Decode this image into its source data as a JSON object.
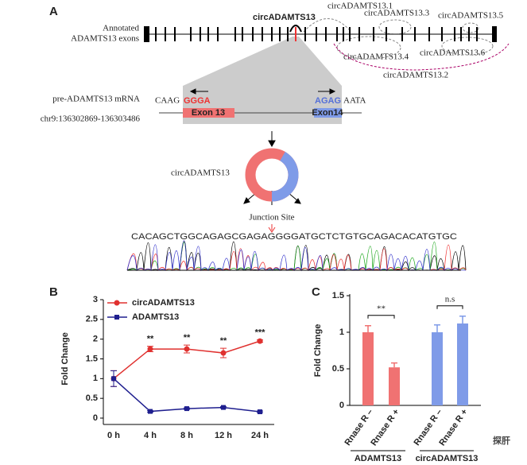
{
  "panel_a": {
    "label": "A",
    "exon_track_label": [
      "Annotated",
      "ADAMTS13 exons"
    ],
    "circ_main": "circADAMTS13",
    "circ_variants": [
      "circADAMTS13.1",
      "circADAMTS13.3",
      "circADAMTS13.5",
      "circADAMTS13.4",
      "circADAMTS13.6",
      "circADAMTS13.2"
    ],
    "mrna_label": "pre-ADAMTS13 mRNA",
    "chr_label": "chr9:136302869-136303486",
    "left_flank": "CAAG",
    "left_seq": "GGGA",
    "right_seq": "AGAG",
    "right_flank": "AATA",
    "exon13": "Exon 13",
    "exon14": "Exon14",
    "circ_label": "circADAMTS13",
    "junction": "Junction Site",
    "sequence": "CACAGCTGGCAGAGCGAGAGGGGATGCTCTGTGCAGACACATGTGC"
  },
  "chart_data": [
    {
      "type": "line",
      "panel": "B",
      "ylabel": "Fold Change",
      "categories": [
        "0 h",
        "4 h",
        "8 h",
        "12 h",
        "24 h"
      ],
      "series": [
        {
          "name": "circADAMTS13",
          "color": "#e0312f",
          "marker": "circle",
          "values": [
            1,
            1.75,
            1.75,
            1.65,
            1.95
          ],
          "errors": [
            0.2,
            0.07,
            0.1,
            0.12,
            0.03
          ]
        },
        {
          "name": "ADAMTS13",
          "color": "#1f1f8f",
          "marker": "square",
          "values": [
            1,
            0.17,
            0.24,
            0.27,
            0.16
          ],
          "errors": [
            0.2,
            0.02,
            0.02,
            0.02,
            0.02
          ]
        }
      ],
      "annotations": [
        null,
        "**",
        "**",
        "**",
        "***"
      ],
      "ylim": [
        0,
        3
      ],
      "yticks": [
        0,
        0.5,
        1,
        1.5,
        2,
        2.5,
        3
      ],
      "legend": "top-left"
    },
    {
      "type": "bar",
      "panel": "C",
      "ylabel": "Fold Change",
      "categories": [
        "Rnase R –",
        "Rnase R +",
        "Rnase R –",
        "Rnase R +"
      ],
      "values": [
        1,
        0.52,
        1,
        1.12
      ],
      "errors": [
        0.09,
        0.06,
        0.1,
        0.1
      ],
      "colors": [
        "#f07272",
        "#f07272",
        "#7f9be8",
        "#7f9be8"
      ],
      "groups": [
        "ADAMTS13",
        "circADAMTS13"
      ],
      "significance": [
        "**",
        "n.s"
      ],
      "ylim": [
        0,
        1.5
      ],
      "yticks": [
        0,
        0.5,
        1,
        1.5
      ]
    }
  ],
  "watermark": "探肝"
}
